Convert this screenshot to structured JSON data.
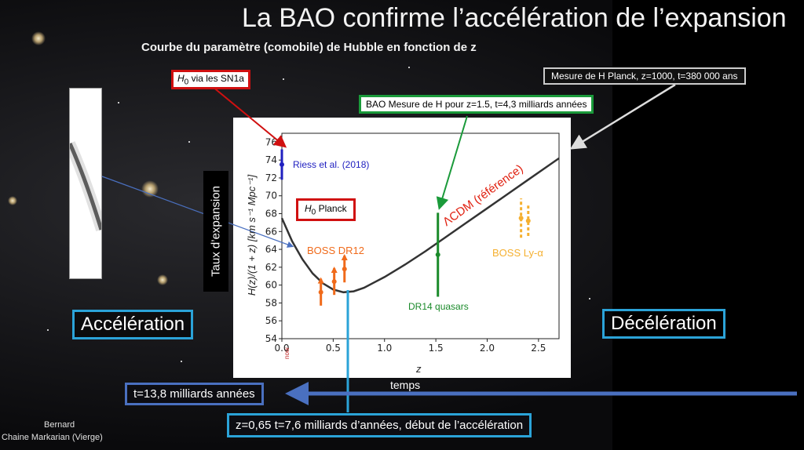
{
  "slide": {
    "title": "La BAO confirme l’accélération de l’expansion",
    "subtitle": "Courbe du paramètre (comobile)  de Hubble en fonction de z"
  },
  "callouts": {
    "h0_sn1a_sym": "H",
    "h0_sn1a_sub": "0",
    "h0_sn1a_text": " via les SN1a",
    "bao": "BAO Mesure de H pour z=1.5, t=4,3 milliards années",
    "planck": "Mesure de H Planck, z=1000, t=380 000 ans",
    "h0_planck_sym": "H",
    "h0_planck_sub": "0",
    "h0_planck_text": " Planck"
  },
  "side_label": "Taux  d’expansion",
  "acceleration": "Accélération",
  "deceleration": "Décélération",
  "temps_label": "temps",
  "now_label": "now",
  "t_now": "t=13,8 milliards années",
  "z_accel": "z=0,65 t=7,6 milliards d’années, début de l’accélération",
  "credit": {
    "line1": "Bernard",
    "line2": "Chaine Markarian (Vierge)"
  },
  "colors": {
    "red": "#d01010",
    "green": "#1a9a3a",
    "cyan": "#2ba3d8",
    "lane": "#4a70c0",
    "riess": "#2020c0",
    "boss": "#f06a1a",
    "lya": "#f5b030",
    "quasar": "#1a8a2a",
    "lcdm": "#e02010"
  },
  "chart_data": {
    "type": "line",
    "xlabel": "z",
    "ylabel": "H(z)/(1 + z) [km s⁻¹ Mpc⁻¹]",
    "xlim": [
      0,
      2.7
    ],
    "ylim": [
      54,
      77
    ],
    "xticks": [
      "0.0",
      "0.5",
      "1.0",
      "1.5",
      "2.0",
      "2.5"
    ],
    "yticks": [
      "54",
      "56",
      "58",
      "60",
      "62",
      "64",
      "66",
      "68",
      "70",
      "72",
      "74",
      "76"
    ],
    "curve": {
      "name": "ΛCDM (référence)",
      "x": [
        0,
        0.1,
        0.2,
        0.3,
        0.4,
        0.5,
        0.6,
        0.7,
        0.8,
        0.9,
        1.0,
        1.2,
        1.4,
        1.6,
        1.8,
        2.0,
        2.2,
        2.4,
        2.6,
        2.7
      ],
      "y": [
        67.5,
        64.9,
        62.9,
        61.3,
        60.2,
        59.5,
        59.2,
        59.3,
        59.7,
        60.3,
        60.9,
        62.3,
        63.8,
        65.4,
        67.0,
        68.6,
        70.2,
        71.8,
        73.4,
        74.2
      ]
    },
    "riess": {
      "name": "Riess et al. (2018)",
      "x": 0.0,
      "y": 73.5,
      "err": 1.7
    },
    "boss_dr12": {
      "name": "BOSS DR12",
      "points": [
        {
          "x": 0.38,
          "y": 59.2,
          "err": 1.5
        },
        {
          "x": 0.51,
          "y": 60.4,
          "err": 1.5
        },
        {
          "x": 0.61,
          "y": 61.8,
          "err": 1.5
        }
      ]
    },
    "dr14": {
      "name": "DR14 quasars",
      "x": 1.52,
      "y": 63.4,
      "err": 4.7
    },
    "boss_lya": {
      "name": "BOSS Ly-α",
      "points": [
        {
          "x": 2.33,
          "y": 67.5,
          "err": 2.2
        },
        {
          "x": 2.4,
          "y": 67.2,
          "err": 1.7
        }
      ]
    }
  }
}
